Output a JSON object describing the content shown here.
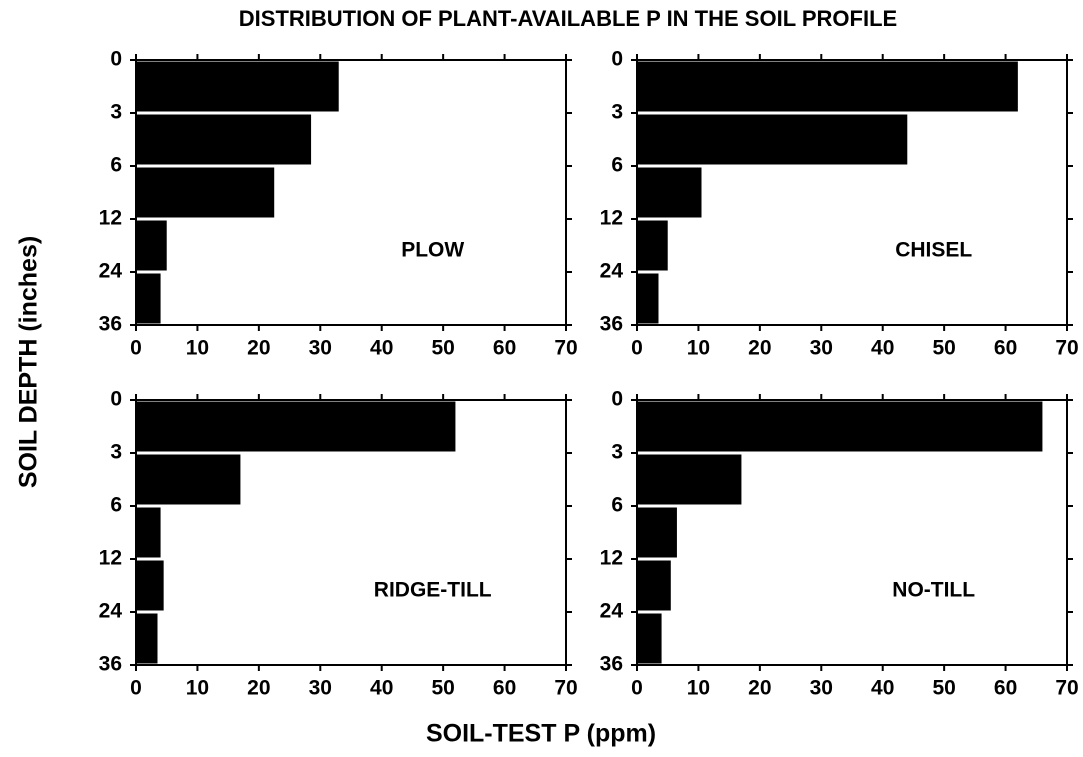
{
  "title": "DISTRIBUTION OF PLANT-AVAILABLE P IN THE SOIL PROFILE",
  "y_label": "SOIL DEPTH (inches)",
  "x_label": "SOIL-TEST P (ppm)",
  "chart_data": [
    {
      "type": "bar",
      "orientation": "horizontal",
      "label": "PLOW",
      "depth_labels": [
        0,
        3,
        6,
        12,
        24,
        36
      ],
      "values": [
        33,
        28.5,
        22.5,
        5,
        4
      ],
      "color": "#000000",
      "xlim": [
        0,
        70
      ],
      "xticks": [
        0,
        10,
        20,
        30,
        40,
        50,
        60,
        70
      ]
    },
    {
      "type": "bar",
      "orientation": "horizontal",
      "label": "CHISEL",
      "depth_labels": [
        0,
        3,
        6,
        12,
        24,
        36
      ],
      "values": [
        62,
        44,
        10.5,
        5,
        3.5
      ],
      "color": "#000000",
      "xlim": [
        0,
        70
      ],
      "xticks": [
        0,
        10,
        20,
        30,
        40,
        50,
        60,
        70
      ]
    },
    {
      "type": "bar",
      "orientation": "horizontal",
      "label": "RIDGE-TILL",
      "depth_labels": [
        0,
        3,
        6,
        12,
        24,
        36
      ],
      "values": [
        52,
        17,
        4,
        4.5,
        3.5
      ],
      "color": "#000000",
      "xlim": [
        0,
        70
      ],
      "xticks": [
        0,
        10,
        20,
        30,
        40,
        50,
        60,
        70
      ]
    },
    {
      "type": "bar",
      "orientation": "horizontal",
      "label": "NO-TILL",
      "depth_labels": [
        0,
        3,
        6,
        12,
        24,
        36
      ],
      "values": [
        66,
        17,
        6.5,
        5.5,
        4
      ],
      "color": "#000000",
      "xlim": [
        0,
        70
      ],
      "xticks": [
        0,
        10,
        20,
        30,
        40,
        50,
        60,
        70
      ]
    }
  ]
}
